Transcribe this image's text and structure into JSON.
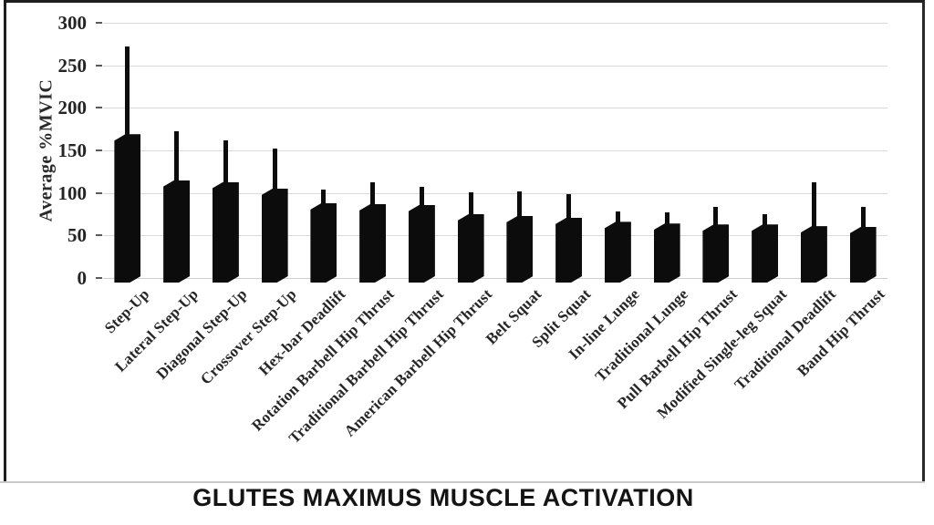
{
  "chart_data": {
    "type": "bar",
    "title": "GLUTES MAXIMUS MUSCLE ACTIVATION",
    "ylabel": "Average %MVIC",
    "xlabel": "",
    "ylim": [
      0,
      300
    ],
    "yticks": [
      0,
      50,
      100,
      150,
      200,
      250,
      300
    ],
    "grid": "horizontal-light-gray",
    "legend": "none",
    "bar_color": "#0c0c0c",
    "error_bar_style": "upper whisker only, no cap",
    "categories": [
      "Step-Up",
      "Lateral Step-Up",
      "Diagonal Step-Up",
      "Crossover Step-Up",
      "Hex-bar Deadlift",
      "Rotation Barbell Hip Thrust",
      "Traditional Barbell Hip Thrust",
      "American Barbell Hip Thrust",
      "Belt Squat",
      "Split Squat",
      "In-line Lunge",
      "Traditional Lunge",
      "Pull Barbell Hip Thrust",
      "Modified Single-leg Squat",
      "Traditional Deadlift",
      "Band Hip Thrust"
    ],
    "values": [
      169,
      115,
      113,
      105,
      88,
      87,
      86,
      75,
      73,
      71,
      66,
      64,
      63,
      63,
      61,
      60
    ],
    "error_top": [
      272,
      172,
      162,
      152,
      104,
      112,
      107,
      101,
      102,
      99,
      78,
      77,
      84,
      75,
      112,
      84
    ]
  },
  "colors": {
    "bar": "#0c0c0c",
    "gridline": "#d9d9d9",
    "frame_border": "#1e1e1e",
    "separator": "#c9c9c9",
    "axis_text": "#242424",
    "title_text": "#141414",
    "background": "#ffffff"
  }
}
